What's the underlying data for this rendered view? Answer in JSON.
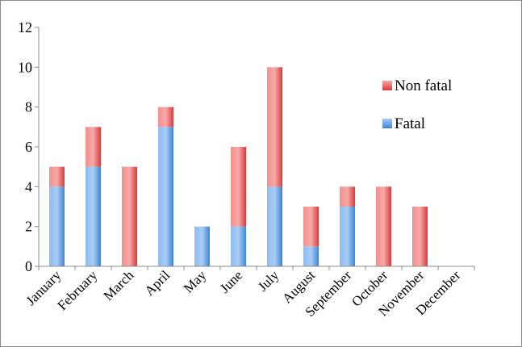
{
  "chart_data": {
    "type": "bar",
    "stacked": true,
    "title": "",
    "xlabel": "",
    "ylabel": "",
    "ylim": [
      0,
      12
    ],
    "yticks": [
      0,
      2,
      4,
      6,
      8,
      10,
      12
    ],
    "ytick_labels": [
      "0",
      "2",
      "4",
      "6",
      "8",
      "10",
      "12"
    ],
    "grid": false,
    "legend_position": "right",
    "categories": [
      "January",
      "February",
      "March",
      "April",
      "May",
      "June",
      "July",
      "August",
      "September",
      "October",
      "November",
      "December"
    ],
    "series": [
      {
        "name": "Fatal",
        "color": "#5b9bd5",
        "values": [
          4,
          5,
          0,
          7,
          2,
          2,
          4,
          1,
          3,
          0,
          0,
          0
        ]
      },
      {
        "name": "Non fatal",
        "color": "#e35b5b",
        "values": [
          1,
          2,
          5,
          1,
          0,
          4,
          6,
          2,
          1,
          4,
          3,
          0
        ]
      }
    ],
    "legend": [
      "Non fatal",
      "Fatal"
    ]
  }
}
